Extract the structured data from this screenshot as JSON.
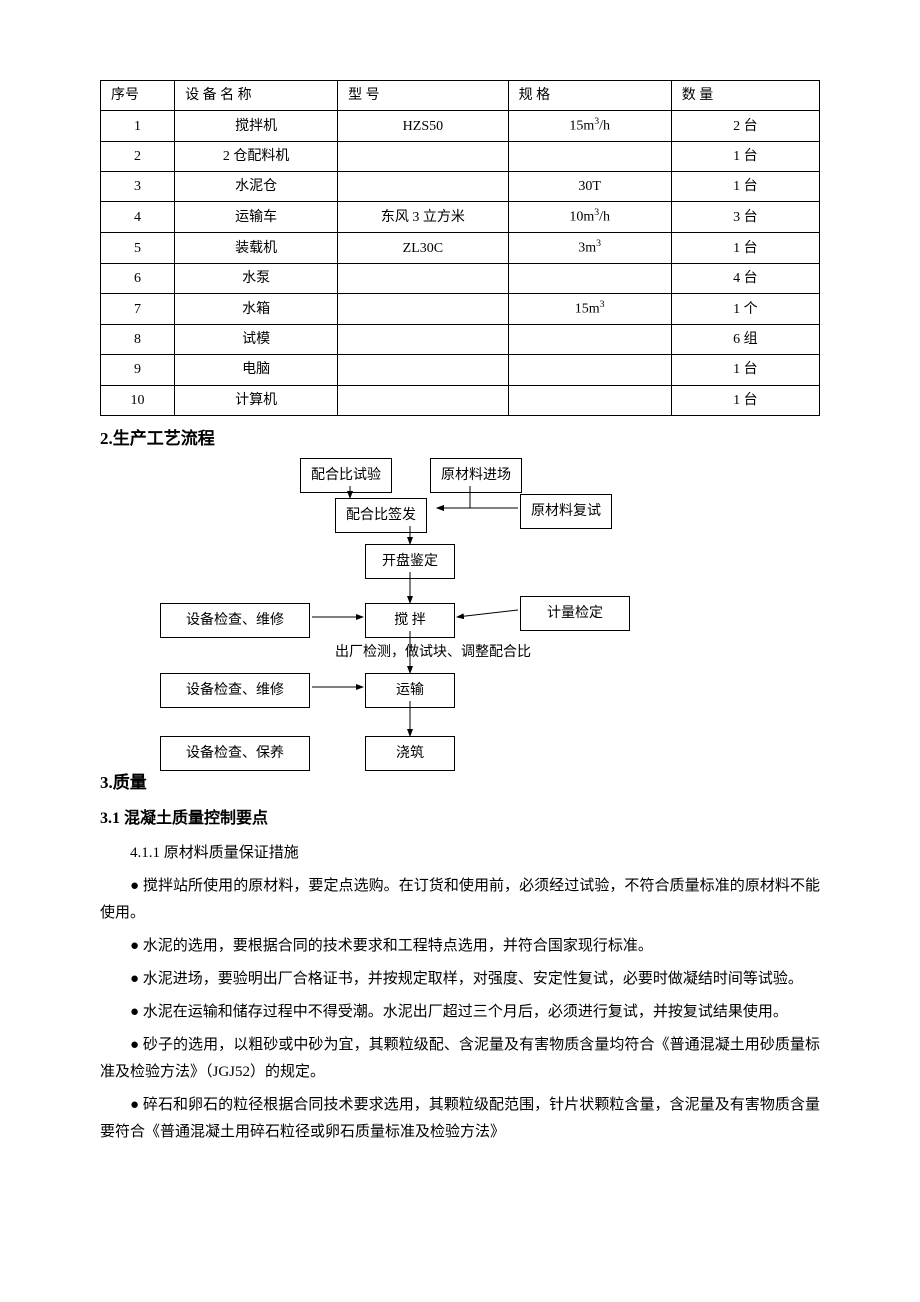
{
  "table": {
    "headers": [
      "序号",
      "设 备 名 称",
      "型   号",
      "规   格",
      "数 量"
    ],
    "rows": [
      [
        "1",
        "搅拌机",
        "HZS50",
        "15m³/h",
        "2 台"
      ],
      [
        "2",
        "2 仓配料机",
        "",
        "",
        "1 台"
      ],
      [
        "3",
        "水泥仓",
        "",
        "30T",
        "1 台"
      ],
      [
        "4",
        "运输车",
        "东风 3 立方米",
        "10m³/h",
        "3 台"
      ],
      [
        "5",
        "装载机",
        "ZL30C",
        "3m³",
        "1 台"
      ],
      [
        "6",
        "水泵",
        "",
        "",
        "4 台"
      ],
      [
        "7",
        "水箱",
        "",
        "15m³",
        "1 个"
      ],
      [
        "8",
        "试模",
        "",
        "",
        "6 组"
      ],
      [
        "9",
        "电脑",
        "",
        "",
        "1 台"
      ],
      [
        "10",
        "计算机",
        "",
        "",
        "1 台"
      ]
    ],
    "border_color": "#000000",
    "font_size": 14
  },
  "section2": {
    "title": "2.生产工艺流程"
  },
  "flow": {
    "n1": "配合比试验",
    "n2": "原材料进场",
    "n3": "配合比签发",
    "n4": "原材料复试",
    "n5": "开盘鉴定",
    "n6": "设备检查、维修",
    "n7": "搅   拌",
    "n8": "计量检定",
    "n9": "设备检查、维修",
    "n10": "运输",
    "n11": "设备检查、保养",
    "n12": "浇筑",
    "note1": "出厂检测，做试块、调整配合比",
    "arrow_color": "#000000",
    "node_border": "#000000",
    "node_bg": "#ffffff"
  },
  "section3": {
    "prefix": "3.质量",
    "title_full": "3.质量"
  },
  "section31": {
    "title": "3.1 混凝土质量控制要点"
  },
  "para": {
    "p1": "4.1.1 原材料质量保证措施",
    "b1": "●  搅拌站所使用的原材料，要定点选购。在订货和使用前，必须经过试验，不符合质量标准的原材料不能使用。",
    "b2": "●  水泥的选用，要根据合同的技术要求和工程特点选用，并符合国家现行标准。",
    "b3": "●  水泥进场，要验明出厂合格证书，并按规定取样，对强度、安定性复试，必要时做凝结时间等试验。",
    "b4": "●  水泥在运输和储存过程中不得受潮。水泥出厂超过三个月后，必须进行复试，并按复试结果使用。",
    "b5": "●  砂子的选用，以粗砂或中砂为宜，其颗粒级配、含泥量及有害物质含量均符合《普通混凝土用砂质量标准及检验方法》（JGJ52）的规定。",
    "b6": "●  碎石和卵石的粒径根据合同技术要求选用，其颗粒级配范围，针片状颗粒含量，含泥量及有害物质含量要符合《普通混凝土用碎石粒径或卵石质量标准及检验方法》"
  },
  "colors": {
    "text": "#000000",
    "background": "#ffffff"
  }
}
